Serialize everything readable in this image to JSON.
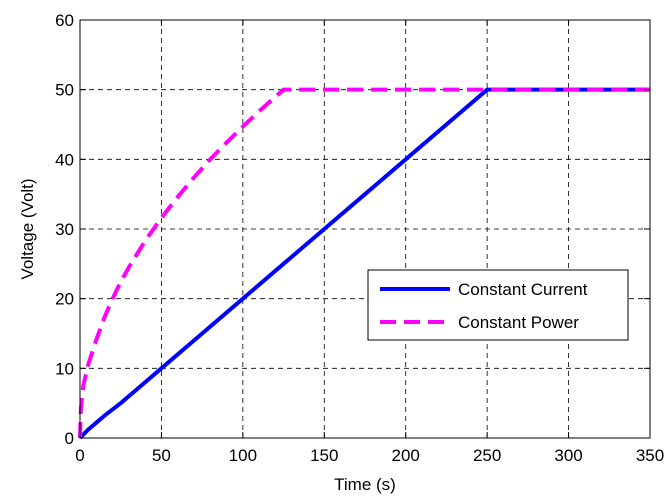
{
  "chart_data": {
    "type": "line",
    "title": "",
    "xlabel": "Time (s)",
    "ylabel": "Voltage (Volt)",
    "xlim": [
      0,
      350
    ],
    "ylim": [
      0,
      60
    ],
    "xticks": [
      0,
      50,
      100,
      150,
      200,
      250,
      300,
      350
    ],
    "yticks": [
      0,
      10,
      20,
      30,
      40,
      50,
      60
    ],
    "xtick_labels": [
      "0",
      "50",
      "100",
      "150",
      "200",
      "250",
      "300",
      "350"
    ],
    "ytick_labels": [
      "0",
      "10",
      "20",
      "30",
      "40",
      "50",
      "60"
    ],
    "grid": true,
    "legend_position": "center-right",
    "series": [
      {
        "name": "Constant Current",
        "color": "#0000ff",
        "line_style": "solid",
        "x": [
          0,
          5,
          10,
          15,
          25,
          35,
          50,
          75,
          100,
          125,
          150,
          175,
          200,
          225,
          250,
          275,
          300,
          325,
          350
        ],
        "y": [
          0,
          1.2,
          2.2,
          3.2,
          5,
          7,
          10,
          15,
          20,
          25,
          30,
          35,
          40,
          45,
          50,
          50,
          50,
          50,
          50
        ]
      },
      {
        "name": "Constant Power",
        "color": "#ff00ff",
        "line_style": "dashed",
        "x": [
          0,
          0.5,
          2,
          5,
          10,
          15,
          20,
          25,
          30,
          40,
          50,
          60,
          70,
          80,
          90,
          100,
          110,
          120,
          125,
          150,
          200,
          250,
          300,
          350
        ],
        "y": [
          0,
          4,
          7.5,
          10.5,
          14.1,
          17.3,
          20,
          22.4,
          24.5,
          28.3,
          31.6,
          34.6,
          37.4,
          40,
          42.4,
          44.7,
          46.9,
          49,
          50,
          50,
          50,
          50,
          50,
          50
        ]
      }
    ]
  }
}
